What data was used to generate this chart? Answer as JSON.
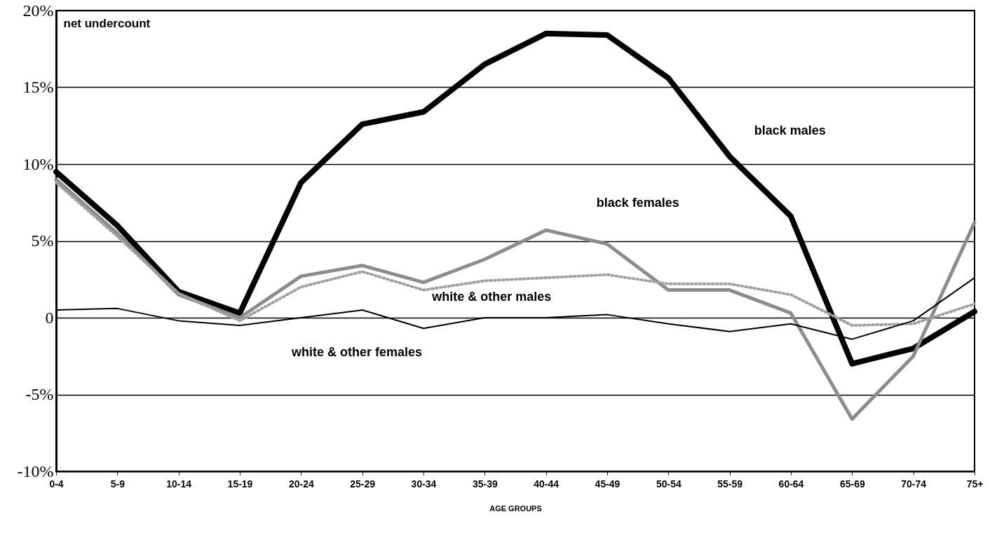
{
  "chart_data": {
    "type": "line",
    "ylabel": "net undercount",
    "xlabel": "AGE GROUPS",
    "categories": [
      "0-4",
      "5-9",
      "10-14",
      "15-19",
      "20-24",
      "25-29",
      "30-34",
      "35-39",
      "40-44",
      "45-49",
      "50-54",
      "55-59",
      "60-64",
      "65-69",
      "70-74",
      "75+"
    ],
    "series": [
      {
        "name": "black males",
        "color": "#000000",
        "line_style": "solid",
        "values": [
          9.5,
          6,
          1.7,
          0.3,
          8.8,
          12.6,
          13.4,
          16.5,
          18.5,
          18.4,
          15.6,
          10.5,
          6.6,
          -3,
          -2,
          0.4
        ]
      },
      {
        "name": "black females",
        "color": "#8c8c8c",
        "line_style": "solid",
        "values": [
          9,
          5.5,
          1.5,
          0,
          2.7,
          3.4,
          2.3,
          3.8,
          5.7,
          4.8,
          1.8,
          1.8,
          0.3,
          -6.6,
          -2.5,
          6.2
        ]
      },
      {
        "name": "white & other males",
        "color": "#a0a0a0",
        "line_style": "dotted",
        "values": [
          8.8,
          5.3,
          1.6,
          -0.2,
          2,
          3,
          1.8,
          2.4,
          2.6,
          2.8,
          2.2,
          2.2,
          1.5,
          -0.5,
          -0.4,
          0.9
        ]
      },
      {
        "name": "white & other females",
        "color": "#000000",
        "line_style": "solid",
        "values": [
          0.5,
          0.6,
          -0.2,
          -0.5,
          0,
          0.5,
          -0.7,
          0,
          0,
          0.2,
          -0.4,
          -0.9,
          -0.4,
          -1.4,
          -0.2,
          2.6
        ]
      }
    ],
    "ylim": [
      -10,
      20
    ],
    "yticks": [
      {
        "value": -10,
        "label": "-10%"
      },
      {
        "value": -5,
        "label": "-5%"
      },
      0,
      {
        "value": 5,
        "label": "5%"
      },
      {
        "value": 10,
        "label": "10%"
      },
      {
        "value": 15,
        "label": "15%"
      },
      {
        "value": 20,
        "label": "20%"
      }
    ],
    "grid": "y",
    "marker": "none"
  }
}
